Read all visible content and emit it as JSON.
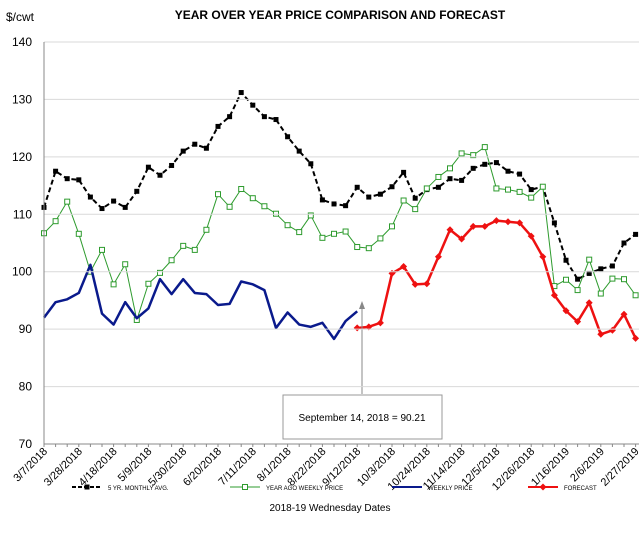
{
  "chart_data": {
    "type": "line",
    "title": "YEAR OVER YEAR PRICE COMPARISON AND FORECAST",
    "y_label": "$/cwt",
    "x_label": "2018-19 Wednesday Dates",
    "annotation": "September 14, 2018 = 90.21",
    "categories": [
      "3/7/2018",
      null,
      null,
      "3/28/2018",
      null,
      null,
      "4/18/2018",
      null,
      null,
      "5/9/2018",
      null,
      null,
      "5/30/2018",
      null,
      null,
      "6/20/2018",
      null,
      null,
      "7/11/2018",
      null,
      null,
      "8/1/2018",
      null,
      null,
      "8/22/2018",
      null,
      null,
      "9/12/2018",
      null,
      null,
      "10/3/2018",
      null,
      null,
      "10/24/2018",
      null,
      null,
      "11/14/2018",
      null,
      null,
      "12/5/2018",
      null,
      null,
      "12/26/2018",
      null,
      null,
      "1/16/2019",
      null,
      null,
      "2/6/2019",
      null,
      null,
      "2/27/2019"
    ],
    "ylim": [
      70,
      140
    ],
    "yticks": [
      70,
      80,
      90,
      100,
      110,
      120,
      130,
      140
    ],
    "grid": true,
    "legend": "bottom",
    "series": [
      {
        "name": "5 YR. MONTHLY AVG.",
        "color": "#000000",
        "dashed": true,
        "marker": "square",
        "values": [
          111.2,
          117.5,
          116.2,
          116,
          113,
          111,
          112.3,
          111.2,
          114,
          118.2,
          116.8,
          118.5,
          121,
          122.2,
          121.5,
          125.3,
          127,
          131.2,
          129,
          127,
          126.5,
          123.5,
          121,
          118.8,
          112.5,
          111.8,
          111.5,
          114.7,
          113,
          113.5,
          114.8,
          117.3,
          112.8,
          114.3,
          114.7,
          116.2,
          115.9,
          118,
          118.7,
          119,
          117.5,
          117,
          114.3,
          114.8,
          108.5,
          102,
          98.7,
          99.7,
          100.5,
          101,
          105,
          106.5
        ]
      },
      {
        "name": "YEAR AGO WEEKLY PRICE",
        "color": "#2e9b2e",
        "dashed": false,
        "marker": "open-square",
        "values": [
          106.7,
          108.8,
          112.2,
          106.6,
          100,
          103.8,
          97.8,
          101.3,
          91.6,
          97.9,
          99.8,
          102,
          104.5,
          103.8,
          107.3,
          113.5,
          111.3,
          114.4,
          112.8,
          111.4,
          110.1,
          108.1,
          106.9,
          109.8,
          105.9,
          106.6,
          107,
          104.3,
          104.1,
          105.8,
          107.9,
          112.4,
          110.9,
          114.5,
          116.5,
          118,
          120.6,
          120.3,
          121.7,
          114.5,
          114.3,
          113.9,
          112.9,
          114.8,
          97.5,
          98.6,
          96.8,
          102.1,
          96.2,
          98.8,
          98.7,
          95.9
        ]
      },
      {
        "name": "WEEKLY PRICE",
        "color": "#0a1a8c",
        "dashed": false,
        "marker": "none",
        "values": [
          92,
          94.7,
          95.2,
          96.3,
          101.2,
          92.7,
          90.8,
          94.7,
          91.9,
          93.6,
          98.7,
          96.1,
          98.7,
          96.3,
          96.1,
          94.2,
          94.4,
          98.3,
          97.8,
          96.8,
          90.2,
          92.9,
          90.8,
          90.4,
          91.1,
          88.3,
          91.4,
          93.1,
          null,
          null,
          null,
          null,
          null,
          null,
          null,
          null,
          null,
          null,
          null,
          null,
          null,
          null,
          null,
          null,
          null,
          null,
          null,
          null,
          null,
          null,
          null,
          null
        ]
      },
      {
        "name": "FORECAST",
        "color": "#ee1111",
        "dashed": false,
        "marker": "diamond",
        "values": [
          null,
          null,
          null,
          null,
          null,
          null,
          null,
          null,
          null,
          null,
          null,
          null,
          null,
          null,
          null,
          null,
          null,
          null,
          null,
          null,
          null,
          null,
          null,
          null,
          null,
          null,
          null,
          90.21,
          90.4,
          91.1,
          99.7,
          100.9,
          97.8,
          97.9,
          102.6,
          107.3,
          105.7,
          107.9,
          107.9,
          108.9,
          108.7,
          108.5,
          106.2,
          102.6,
          95.9,
          93.2,
          91.3,
          94.6,
          89.1,
          89.8,
          92.6,
          88.4
        ]
      }
    ]
  }
}
